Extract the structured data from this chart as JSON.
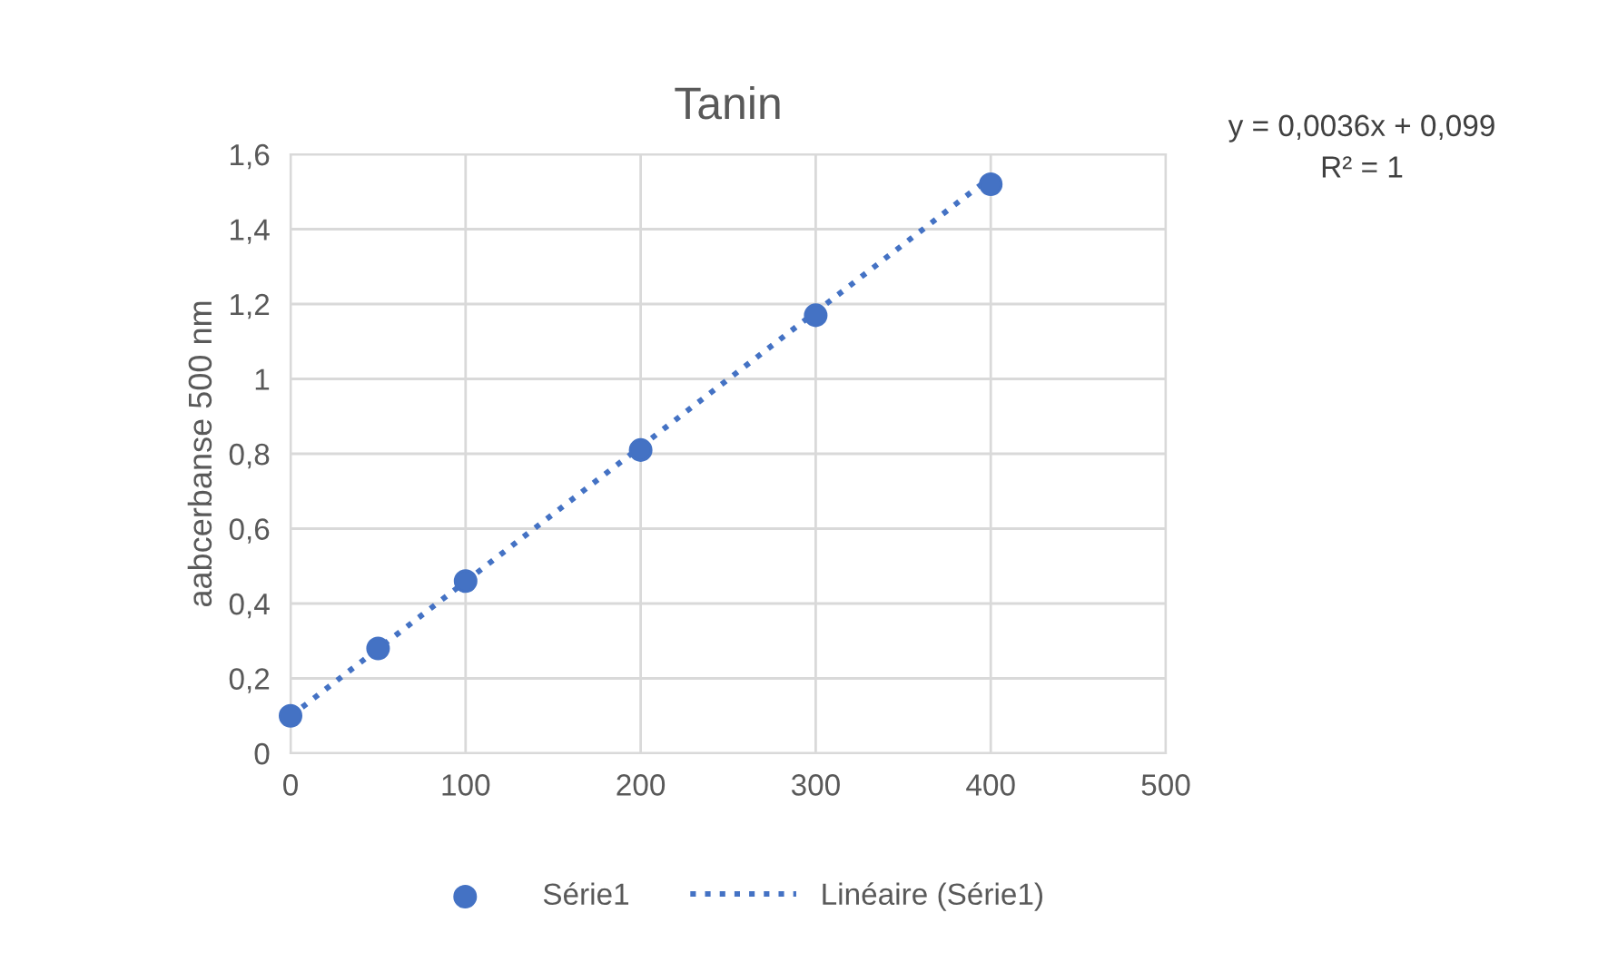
{
  "chart_data": {
    "type": "scatter",
    "title": "Tanin",
    "ylabel": "aabcerbanse 500 nm",
    "annotations": [
      "y = 0,0036x + 0,099\nR² = 1"
    ],
    "series": [
      {
        "name": "Série1",
        "color": "#4472c4",
        "marker": "circle",
        "x": [
          0,
          50,
          100,
          200,
          300,
          400
        ],
        "values": [
          0.1,
          0.28,
          0.46,
          0.81,
          1.17,
          1.52
        ]
      },
      {
        "name": "Linéaire (Série1)",
        "type": "line",
        "color": "#4472c4",
        "line_style": "dotted",
        "marker": "none",
        "x": [
          0,
          400
        ],
        "values": [
          0.099,
          1.539
        ]
      }
    ],
    "xlim": [
      0,
      500
    ],
    "xticks": [
      0,
      100,
      200,
      300,
      400,
      500
    ],
    "ylim": [
      0,
      1.6
    ],
    "yticks": [
      0,
      {
        "value": 0.2,
        "label": "0,2"
      },
      {
        "value": 0.4,
        "label": "0,4"
      },
      {
        "value": 0.6,
        "label": "0,6"
      },
      {
        "value": 0.8,
        "label": "0,8"
      },
      1,
      {
        "value": 1.2,
        "label": "1,2"
      },
      {
        "value": 1.4,
        "label": "1,4"
      },
      {
        "value": 1.6,
        "label": "1,6"
      }
    ],
    "grid": true,
    "legend": "bottom"
  }
}
